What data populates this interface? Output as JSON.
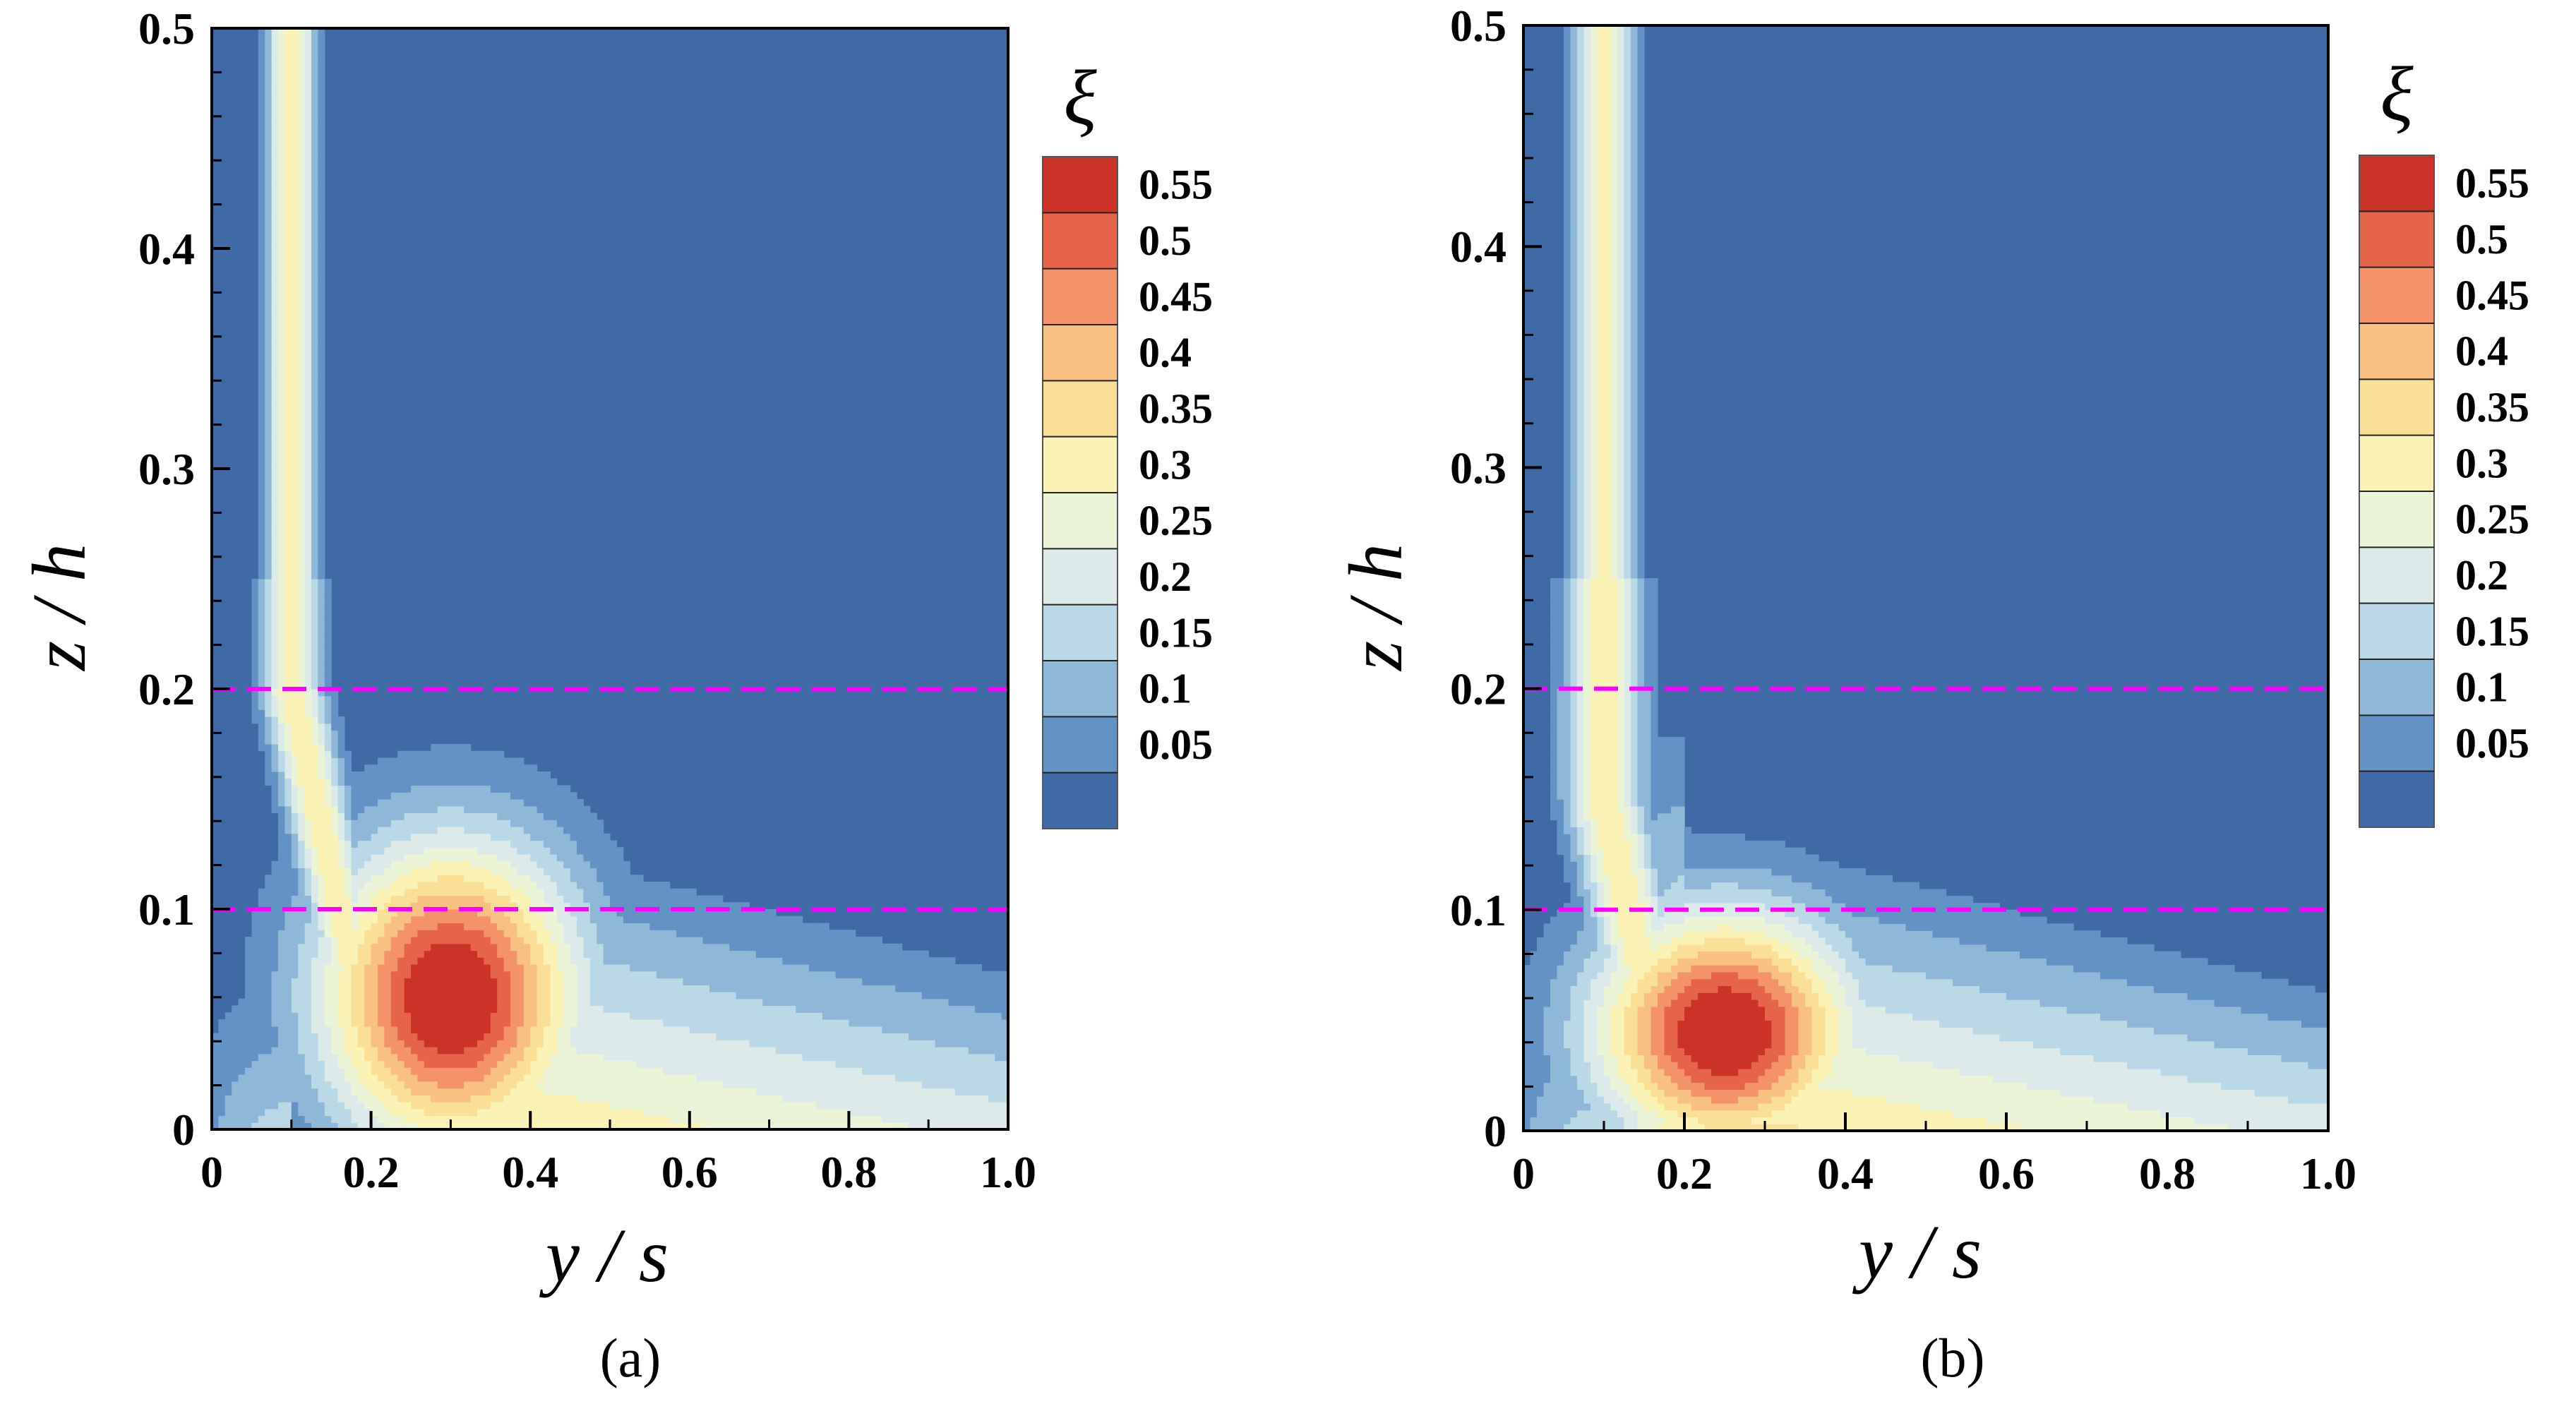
{
  "figure": {
    "panels": [
      {
        "label": "(a)"
      },
      {
        "label": "(b)"
      }
    ]
  },
  "chart_data": [
    {
      "type": "heatmap",
      "panel": "(a)",
      "xlabel": "y / s",
      "ylabel": "z / h",
      "xlim": [
        0,
        1.0
      ],
      "ylim": [
        0,
        0.5
      ],
      "xticks": [
        "0",
        "0.2",
        "0.4",
        "0.6",
        "0.8",
        "1.0"
      ],
      "xtick_values": [
        0,
        0.2,
        0.4,
        0.6,
        0.8,
        1.0
      ],
      "yticks": [
        "0",
        "0.1",
        "0.2",
        "0.3",
        "0.4",
        "0.5"
      ],
      "ytick_values": [
        0,
        0.1,
        0.2,
        0.3,
        0.4,
        0.5
      ],
      "colorbar": {
        "title": "ξ",
        "levels": [
          "0.55",
          "0.5",
          "0.45",
          "0.4",
          "0.35",
          "0.3",
          "0.25",
          "0.2",
          "0.15",
          "0.1",
          "0.05"
        ],
        "colors": [
          "#cc3328",
          "#e5644a",
          "#f4926a",
          "#f8c081",
          "#fadf96",
          "#fbf3b6",
          "#ecf4d8",
          "#dcebea",
          "#bad8e6",
          "#8fb8d8",
          "#6293c4",
          "#3f6aa5"
        ]
      },
      "reference_lines": [
        {
          "z": 0.1,
          "style": "dashed",
          "color": "#ff00ff"
        },
        {
          "z": 0.2,
          "style": "dashed",
          "color": "#ff00ff"
        }
      ],
      "features": {
        "jet": {
          "y_range": [
            0.06,
            0.14
          ],
          "z_top": 0.5,
          "neck_z": 0.2
        },
        "core": {
          "center_y": 0.3,
          "center_z": 0.06,
          "level": 0.55,
          "y_range": [
            0.2,
            0.47
          ],
          "z_range": [
            0.01,
            0.12
          ]
        },
        "spread_edge_z_at_y1": 0.09
      }
    },
    {
      "type": "heatmap",
      "panel": "(b)",
      "xlabel": "y / s",
      "ylabel": "z / h",
      "xlim": [
        0,
        1.0
      ],
      "ylim": [
        0,
        0.5
      ],
      "xticks": [
        "0",
        "0.2",
        "0.4",
        "0.6",
        "0.8",
        "1.0"
      ],
      "xtick_values": [
        0,
        0.2,
        0.4,
        0.6,
        0.8,
        1.0
      ],
      "yticks": [
        "0",
        "0.1",
        "0.2",
        "0.3",
        "0.4",
        "0.5"
      ],
      "ytick_values": [
        0,
        0.1,
        0.2,
        0.3,
        0.4,
        0.5
      ],
      "colorbar": {
        "title": "ξ",
        "levels": [
          "0.55",
          "0.5",
          "0.45",
          "0.4",
          "0.35",
          "0.3",
          "0.25",
          "0.2",
          "0.15",
          "0.1",
          "0.05"
        ],
        "colors": [
          "#cc3328",
          "#e5644a",
          "#f4926a",
          "#f8c081",
          "#fadf96",
          "#fbf3b6",
          "#ecf4d8",
          "#dcebea",
          "#bad8e6",
          "#8fb8d8",
          "#6293c4",
          "#3f6aa5"
        ]
      },
      "reference_lines": [
        {
          "z": 0.1,
          "style": "dashed",
          "color": "#ff00ff"
        },
        {
          "z": 0.2,
          "style": "dashed",
          "color": "#ff00ff"
        }
      ],
      "features": {
        "jet": {
          "y_range": [
            0.05,
            0.15
          ],
          "z_top": 0.5,
          "neck_z": 0.15
        },
        "core": {
          "center_y": 0.25,
          "center_z": 0.045,
          "level": 0.55,
          "y_range": [
            0.12,
            0.39
          ],
          "z_range": [
            0.005,
            0.09
          ]
        },
        "spread_edge_z_at_y1": 0.08
      }
    }
  ]
}
